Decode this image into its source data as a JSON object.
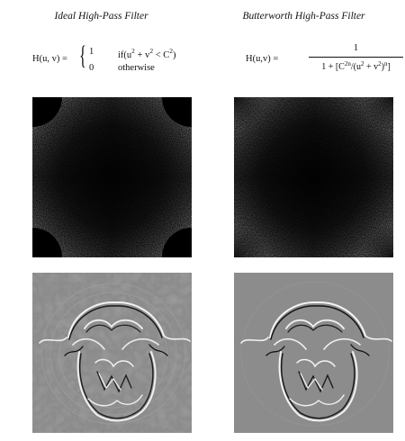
{
  "ideal": {
    "title": "Ideal High-Pass Filter",
    "lhs": "H(u, v)  =",
    "case1_value": "1",
    "case1_cond_a": "if(u",
    "case1_exp_u": "2",
    "case1_cond_b": " + v",
    "case1_exp_v": "2",
    "case1_cond_c": " < C",
    "case1_exp_c": "2",
    "case1_cond_d": ")",
    "case2_value": "0",
    "case2_cond": "otherwise",
    "spectrum_panel": "spectrum",
    "filtered_panel": "filtered-image"
  },
  "butterworth": {
    "title": "Butterworth High-Pass Filter",
    "lhs": "H(u,v)  =",
    "numerator": "1",
    "den_a": "1 + [C",
    "den_exp_2n": "2n",
    "den_b": "/(u",
    "den_exp_u": "2",
    "den_c": " + v",
    "den_exp_v": "2",
    "den_d": ")",
    "den_exp_n": "n",
    "den_e": "]",
    "spectrum_panel": "spectrum",
    "filtered_panel": "filtered-image"
  },
  "colors": {
    "background": "#ffffff",
    "spectrum_dark": "#000000",
    "image_gray": "#8a8a8a",
    "edge_light": "#f2f2f2",
    "edge_dark": "#1a1a1a"
  }
}
